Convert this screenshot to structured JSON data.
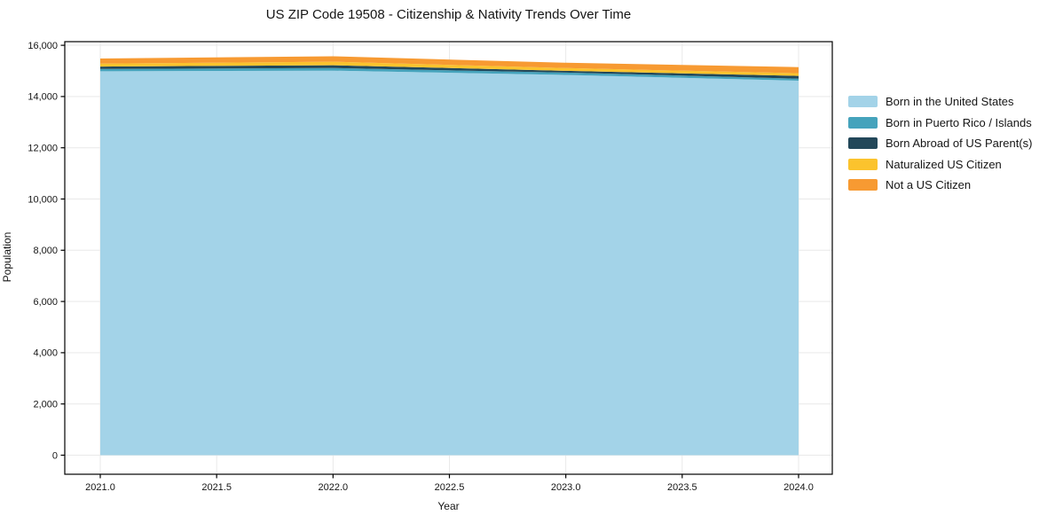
{
  "chart_data": {
    "type": "area",
    "stacked": true,
    "title": "US ZIP Code 19508 - Citizenship & Nativity Trends Over Time",
    "xlabel": "Year",
    "ylabel": "Population",
    "x": [
      2021.0,
      2022.0,
      2023.0,
      2024.0
    ],
    "series": [
      {
        "name": "Born in the United States",
        "color": "#a3d3e8",
        "values": [
          14985,
          15010,
          14845,
          14620
        ]
      },
      {
        "name": "Born in Puerto Rico / Islands",
        "color": "#45a3bc",
        "values": [
          90,
          105,
          90,
          80
        ]
      },
      {
        "name": "Born Abroad of US Parent(s)",
        "color": "#224759",
        "values": [
          95,
          105,
          70,
          105
        ]
      },
      {
        "name": "Naturalized US Citizen",
        "color": "#fbc32d",
        "values": [
          115,
          140,
          105,
          105
        ]
      },
      {
        "name": "Not a US Citizen",
        "color": "#f79a32",
        "values": [
          200,
          210,
          210,
          240
        ]
      }
    ],
    "xticks": {
      "values": [
        2021.0,
        2021.5,
        2022.0,
        2022.5,
        2023.0,
        2023.5,
        2024.0
      ],
      "labels": [
        "2021.0",
        "2021.5",
        "2022.0",
        "2022.5",
        "2023.0",
        "2023.5",
        "2024.0"
      ]
    },
    "yticks": {
      "values": [
        0,
        2000,
        4000,
        6000,
        8000,
        10000,
        12000,
        14000,
        16000
      ],
      "labels": [
        "0",
        "2,000",
        "4,000",
        "6,000",
        "8,000",
        "10,000",
        "12,000",
        "14,000",
        "16,000"
      ]
    },
    "xlim": [
      2020.85,
      2024.15
    ],
    "ylim": [
      -730,
      16160
    ],
    "grid": true,
    "grid_color": "#e9e9e9",
    "axis_color": "#000000",
    "legend_position": "right"
  }
}
